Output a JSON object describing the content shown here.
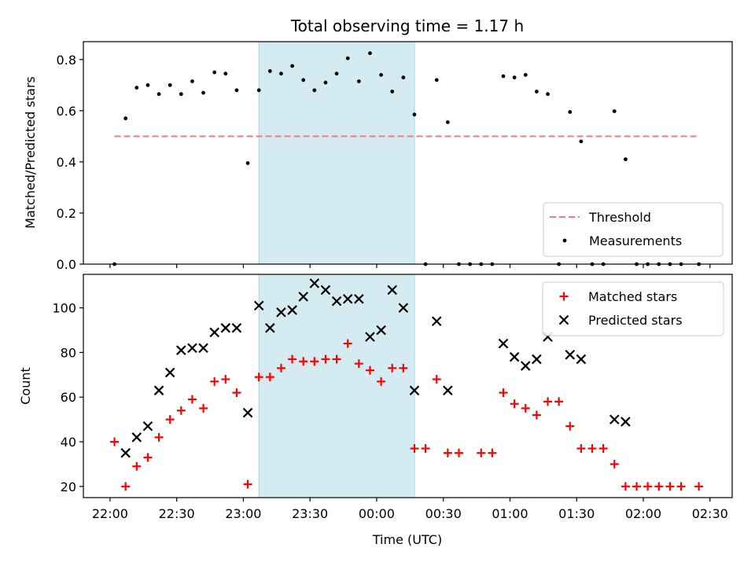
{
  "chart_data": [
    {
      "type": "scatter",
      "title": "Total observing time = 1.17 h",
      "xlabel": "",
      "ylabel": "Matched/Predicted stars",
      "ylim": [
        0,
        0.87
      ],
      "yticks": [
        "0.0",
        "0.2",
        "0.4",
        "0.6",
        "0.8"
      ],
      "yticks_values": [
        0,
        0.2,
        0.4,
        0.6,
        0.8
      ],
      "highlight": {
        "start": "23:07",
        "end": "00:17",
        "color": "#d4ebf1"
      },
      "threshold": {
        "name": "Threshold",
        "value": 0.5,
        "start": "22:02",
        "end": "02:25",
        "color": "#f47b7b"
      },
      "legend": {
        "placement": "lower right",
        "entries": [
          "Threshold",
          "Measurements"
        ]
      },
      "series": [
        {
          "name": "Measurements",
          "marker": "dot",
          "color": "#000000",
          "x": [
            "22:02",
            "22:07",
            "22:12",
            "22:17",
            "22:22",
            "22:27",
            "22:32",
            "22:37",
            "22:42",
            "22:47",
            "22:52",
            "22:57",
            "23:02",
            "23:07",
            "23:12",
            "23:17",
            "23:22",
            "23:27",
            "23:32",
            "23:37",
            "23:42",
            "23:47",
            "23:52",
            "23:57",
            "00:02",
            "00:07",
            "00:12",
            "00:17",
            "00:22",
            "00:27",
            "00:32",
            "00:37",
            "00:42",
            "00:47",
            "00:52",
            "00:57",
            "01:02",
            "01:07",
            "01:12",
            "01:17",
            "01:22",
            "01:27",
            "01:32",
            "01:37",
            "01:42",
            "01:47",
            "01:52",
            "01:57",
            "02:02",
            "02:07",
            "02:12",
            "02:17",
            "02:25"
          ],
          "y": [
            0.0,
            0.57,
            0.69,
            0.7,
            0.665,
            0.7,
            0.665,
            0.715,
            0.67,
            0.75,
            0.745,
            0.68,
            0.395,
            0.68,
            0.755,
            0.745,
            0.775,
            0.72,
            0.68,
            0.71,
            0.745,
            0.805,
            0.715,
            0.825,
            0.74,
            0.675,
            0.73,
            0.585,
            0.0,
            0.72,
            0.555,
            0.0,
            0.0,
            0.0,
            0.0,
            0.735,
            0.73,
            0.74,
            0.675,
            0.665,
            0.0,
            0.595,
            0.48,
            0.0,
            0.0,
            0.598,
            0.41,
            0.0,
            0.0,
            0.0,
            0.0,
            0.0,
            0.0
          ]
        }
      ]
    },
    {
      "type": "scatter",
      "title": "",
      "xlabel": "Time (UTC)",
      "ylabel": "Count",
      "ylim": [
        15,
        115
      ],
      "xlim": [
        "21:48",
        "02:40"
      ],
      "yticks": [
        "20",
        "40",
        "60",
        "80",
        "100"
      ],
      "yticks_values": [
        20,
        40,
        60,
        80,
        100
      ],
      "xticks": [
        "22:00",
        "22:30",
        "23:00",
        "23:30",
        "00:00",
        "00:30",
        "01:00",
        "01:30",
        "02:00",
        "02:30"
      ],
      "highlight": {
        "start": "23:07",
        "end": "00:17",
        "color": "#d4ebf1"
      },
      "legend": {
        "placement": "upper right",
        "entries": [
          "Matched stars",
          "Predicted stars"
        ]
      },
      "series": [
        {
          "name": "Matched stars",
          "marker": "plus",
          "color": "#ff0000",
          "x": [
            "22:02",
            "22:07",
            "22:12",
            "22:17",
            "22:22",
            "22:27",
            "22:32",
            "22:37",
            "22:42",
            "22:47",
            "22:52",
            "22:57",
            "23:02",
            "23:07",
            "23:12",
            "23:17",
            "23:22",
            "23:27",
            "23:32",
            "23:37",
            "23:42",
            "23:47",
            "23:52",
            "23:57",
            "00:02",
            "00:07",
            "00:12",
            "00:17",
            "00:22",
            "00:27",
            "00:32",
            "00:37",
            "00:47",
            "00:52",
            "00:57",
            "01:02",
            "01:07",
            "01:12",
            "01:17",
            "01:22",
            "01:27",
            "01:32",
            "01:37",
            "01:42",
            "01:47",
            "01:52",
            "01:57",
            "02:02",
            "02:07",
            "02:12",
            "02:17",
            "02:25"
          ],
          "y": [
            40,
            20,
            29,
            33,
            42,
            50,
            54,
            59,
            55,
            67,
            68,
            62,
            21,
            69,
            69,
            73,
            77,
            76,
            76,
            77,
            77,
            84,
            75,
            72,
            67,
            73,
            73,
            37,
            37,
            68,
            35,
            35,
            35,
            35,
            62,
            57,
            55,
            52,
            58,
            58,
            47,
            37,
            37,
            37,
            30,
            20,
            20,
            20,
            20,
            20,
            20,
            20
          ]
        },
        {
          "name": "Predicted stars",
          "marker": "x",
          "color": "#000000",
          "x": [
            "22:07",
            "22:12",
            "22:17",
            "22:22",
            "22:27",
            "22:32",
            "22:37",
            "22:42",
            "22:47",
            "22:52",
            "22:57",
            "23:02",
            "23:07",
            "23:12",
            "23:17",
            "23:22",
            "23:27",
            "23:32",
            "23:37",
            "23:42",
            "23:47",
            "23:52",
            "23:57",
            "00:02",
            "00:07",
            "00:12",
            "00:17",
            "00:27",
            "00:32",
            "00:57",
            "01:02",
            "01:07",
            "01:12",
            "01:17",
            "01:27",
            "01:32",
            "01:47",
            "01:52"
          ],
          "y": [
            35,
            42,
            47,
            63,
            71,
            81,
            82,
            82,
            89,
            91,
            91,
            53,
            101,
            91,
            98,
            99,
            105,
            111,
            108,
            103,
            104,
            104,
            87,
            90,
            108,
            100,
            63,
            94,
            63,
            84,
            78,
            74,
            77,
            87,
            79,
            77,
            50,
            49
          ]
        }
      ]
    }
  ]
}
